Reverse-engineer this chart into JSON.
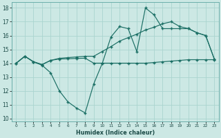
{
  "xlabel": "Humidex (Indice chaleur)",
  "background_color": "#cce8e4",
  "grid_color": "#aad4cf",
  "line_color": "#1a6e64",
  "xlim": [
    -0.5,
    23.5
  ],
  "ylim": [
    9.8,
    18.4
  ],
  "xticks": [
    0,
    1,
    2,
    3,
    4,
    5,
    6,
    7,
    8,
    9,
    10,
    11,
    12,
    13,
    14,
    15,
    16,
    17,
    18,
    19,
    20,
    21,
    22,
    23
  ],
  "yticks": [
    10,
    11,
    12,
    13,
    14,
    15,
    16,
    17,
    18
  ],
  "series_zigzag": {
    "x": [
      0,
      1,
      2,
      3,
      4,
      5,
      6,
      7,
      8,
      9,
      10,
      11,
      12,
      13,
      14,
      15,
      16,
      17,
      18,
      19,
      20,
      21,
      22,
      23
    ],
    "y": [
      14.0,
      14.5,
      14.1,
      13.85,
      13.3,
      12.0,
      11.2,
      10.75,
      10.4,
      12.5,
      14.0,
      15.9,
      16.65,
      16.5,
      14.85,
      18.0,
      17.5,
      16.5,
      16.5,
      16.5,
      16.5,
      16.2,
      16.0,
      14.3
    ]
  },
  "series_diagonal": {
    "x": [
      0,
      1,
      2,
      3,
      4,
      5,
      6,
      7,
      8,
      9,
      10,
      11,
      12,
      13,
      14,
      15,
      16,
      17,
      18,
      19,
      20,
      21,
      22,
      23
    ],
    "y": [
      14.0,
      14.5,
      14.1,
      13.9,
      14.2,
      14.35,
      14.4,
      14.45,
      14.5,
      14.5,
      14.85,
      15.2,
      15.6,
      15.85,
      16.1,
      16.4,
      16.6,
      16.85,
      17.0,
      16.65,
      16.5,
      16.2,
      16.0,
      14.3
    ]
  },
  "series_flat": {
    "x": [
      0,
      1,
      2,
      3,
      4,
      5,
      6,
      7,
      8,
      9,
      10,
      11,
      12,
      13,
      14,
      15,
      16,
      17,
      18,
      19,
      20,
      21,
      22,
      23
    ],
    "y": [
      14.0,
      14.5,
      14.1,
      13.9,
      14.2,
      14.3,
      14.32,
      14.34,
      14.36,
      14.0,
      14.0,
      14.0,
      14.0,
      14.0,
      14.0,
      14.0,
      14.05,
      14.1,
      14.15,
      14.2,
      14.25,
      14.25,
      14.25,
      14.25
    ]
  }
}
